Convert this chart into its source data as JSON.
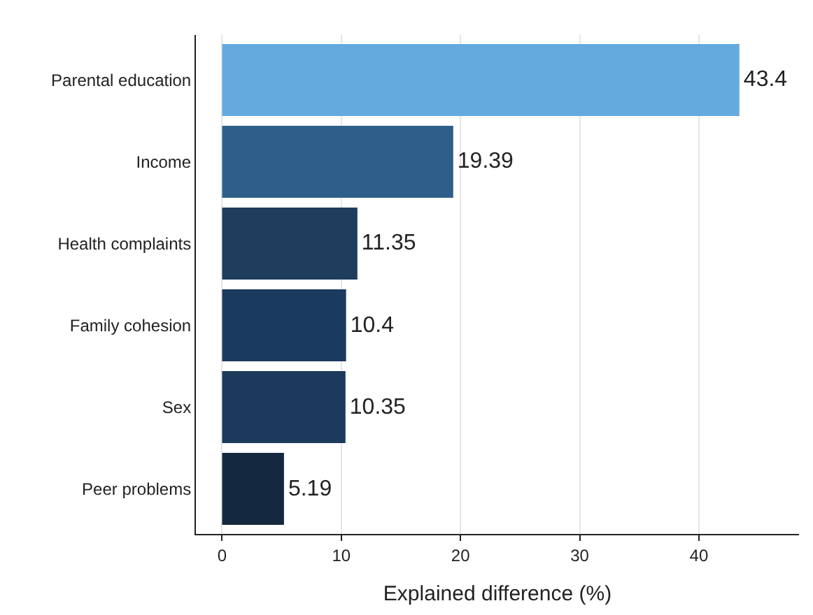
{
  "chart_data": {
    "type": "bar",
    "orientation": "horizontal",
    "xlabel": "Explained difference (%)",
    "categories": [
      "Parental education",
      "Income",
      "Health complaints",
      "Family cohesion",
      "Sex",
      "Peer problems"
    ],
    "values": [
      43.4,
      19.39,
      11.35,
      10.4,
      10.35,
      5.19
    ],
    "colors": [
      "#64aadf",
      "#2e5f8a",
      "#1f3d5c",
      "#1b3a5f",
      "#1b3a5c",
      "#14293f"
    ],
    "xlim": [
      -2.2,
      48.4
    ],
    "xticks": [
      0,
      10,
      20,
      30,
      40
    ],
    "grid": "x",
    "data_labels": true
  }
}
